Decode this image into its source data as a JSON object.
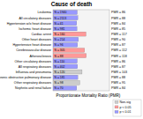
{
  "chart_data": {
    "type": "bar",
    "orientation": "horizontal",
    "title": "Cause of death",
    "x_label": "Proportionate Mortality Ratio (PMR)",
    "categories": [
      "Leukemia",
      "All circulatory diseases",
      "Hypertension w/o heart disease",
      "Ischemic heart disease",
      "Cardiac arrest",
      "Other heart diseases",
      "Hypertensive heart disease",
      "Cerebrovascular disease",
      "Atherosclerosis",
      "Other circulatory diseases",
      "All respiratory diseases",
      "Influenza and pneumonia",
      "Chronic obstructive pulmonary disease",
      "Other respiratory diseases",
      "Nephritis and renal failure"
    ],
    "values": [
      86,
      88,
      84,
      85,
      117,
      90,
      87,
      112,
      118,
      86,
      87,
      103,
      88,
      95,
      84
    ],
    "value_labels": [
      "PMR = 86",
      "PMR = 88",
      "PMR = 84",
      "PMR = 85",
      "PMR = 117",
      "PMR = 90",
      "PMR = 87",
      "PMR = 112",
      "PMR = 118",
      "PMR = 86",
      "PMR = 87",
      "PMR = 103",
      "PMR = 88",
      "PMR = 95",
      "PMR = 84"
    ],
    "count_labels": [
      "N = 1940",
      "N = 2113",
      "N = 41",
      "N = 981",
      "N = 160",
      "N = 214",
      "N = 96",
      "N = 305",
      "N = 88",
      "N = 110",
      "N = 402",
      "N = 120",
      "N = 181",
      "N = 98",
      "N = 70"
    ],
    "colors": [
      "#9999ff",
      "#9999ff",
      "#9999ff",
      "#9999ff",
      "#ff9999",
      "#9999ff",
      "#9999ff",
      "#ff9999",
      "#ff9999",
      "#9999ff",
      "#9999ff",
      "#cccccc",
      "#9999ff",
      "#cccccc",
      "#9999ff"
    ],
    "xlim": [
      0,
      200
    ],
    "tick_labels": false,
    "grid": false,
    "legend": "bottom-right",
    "legend_entries": [
      {
        "name": "Non-sig",
        "color": "#cccccc"
      },
      {
        "name": "p < 0.05",
        "color": "#ff9999"
      },
      {
        "name": "p < 0.01",
        "color": "#9999ff"
      }
    ]
  }
}
